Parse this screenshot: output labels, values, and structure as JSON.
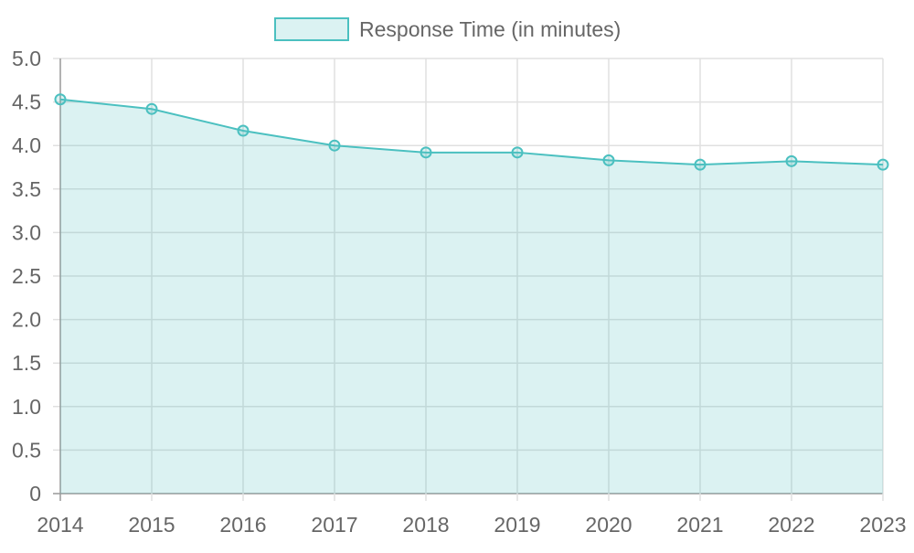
{
  "chart_data": {
    "type": "area",
    "categories": [
      "2014",
      "2015",
      "2016",
      "2017",
      "2018",
      "2019",
      "2020",
      "2021",
      "2022",
      "2023"
    ],
    "series": [
      {
        "name": "Response Time (in minutes)",
        "values": [
          4.53,
          4.42,
          4.17,
          4.0,
          3.92,
          3.92,
          3.83,
          3.78,
          3.82,
          3.78
        ]
      }
    ],
    "yticks": [
      "0",
      "0.5",
      "1.0",
      "1.5",
      "2.0",
      "2.5",
      "3.0",
      "3.5",
      "4.0",
      "4.5",
      "5.0"
    ],
    "ylim": [
      0,
      5
    ],
    "grid": true,
    "legend": "top",
    "colors": {
      "line": "#4bc0c0",
      "fill": "#dbf2f2",
      "grid": "#e0e0e0",
      "axis": "#999999"
    }
  }
}
